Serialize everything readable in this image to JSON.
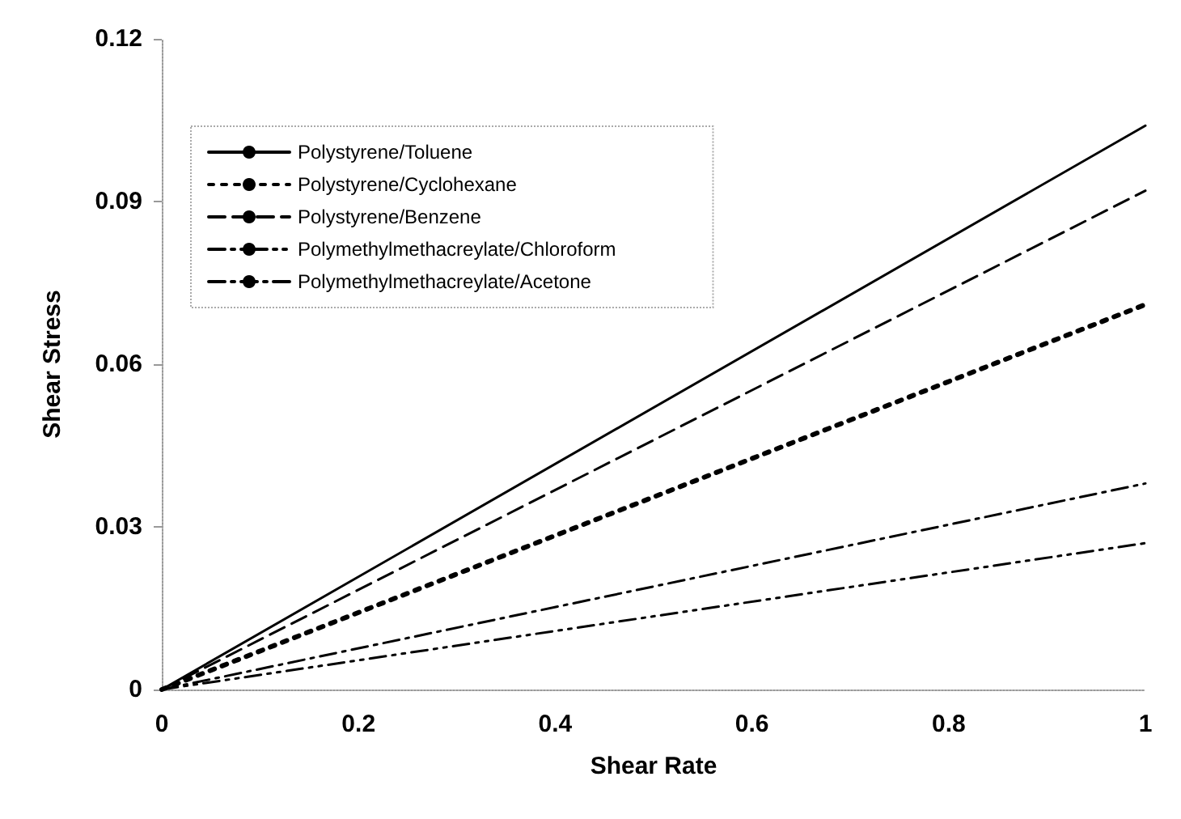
{
  "chart_data": {
    "type": "line",
    "xlabel": "Shear Rate",
    "ylabel": "Shear Stress",
    "x": [
      0,
      1
    ],
    "series": [
      {
        "name": "Polystyrene/Toluene",
        "color": "#000000",
        "values": [
          0,
          0.104
        ],
        "line_style": "solid"
      },
      {
        "name": "Polystyrene/Cyclohexane",
        "color": "#000000",
        "values": [
          0,
          0.071
        ],
        "line_style": "dotted"
      },
      {
        "name": "Polystyrene/Benzene",
        "color": "#000000",
        "values": [
          0,
          0.092
        ],
        "line_style": "dashed"
      },
      {
        "name": "Polymethylmethacreylate/Chloroform",
        "color": "#000000",
        "values": [
          0,
          0.027
        ],
        "line_style": "dashdotdot"
      },
      {
        "name": "Polymethylmethacreylate/Acetone",
        "color": "#000000",
        "values": [
          0,
          0.038
        ],
        "line_style": "dashdot"
      }
    ],
    "xlim": [
      0,
      1
    ],
    "xticks": [
      0,
      0.2,
      0.4,
      0.6,
      0.8,
      1
    ],
    "ylim": [
      0,
      0.12
    ],
    "yticks": [
      0,
      0.03,
      0.06,
      0.09,
      0.12
    ],
    "grid": false,
    "legend": "top left",
    "marker": "none"
  }
}
